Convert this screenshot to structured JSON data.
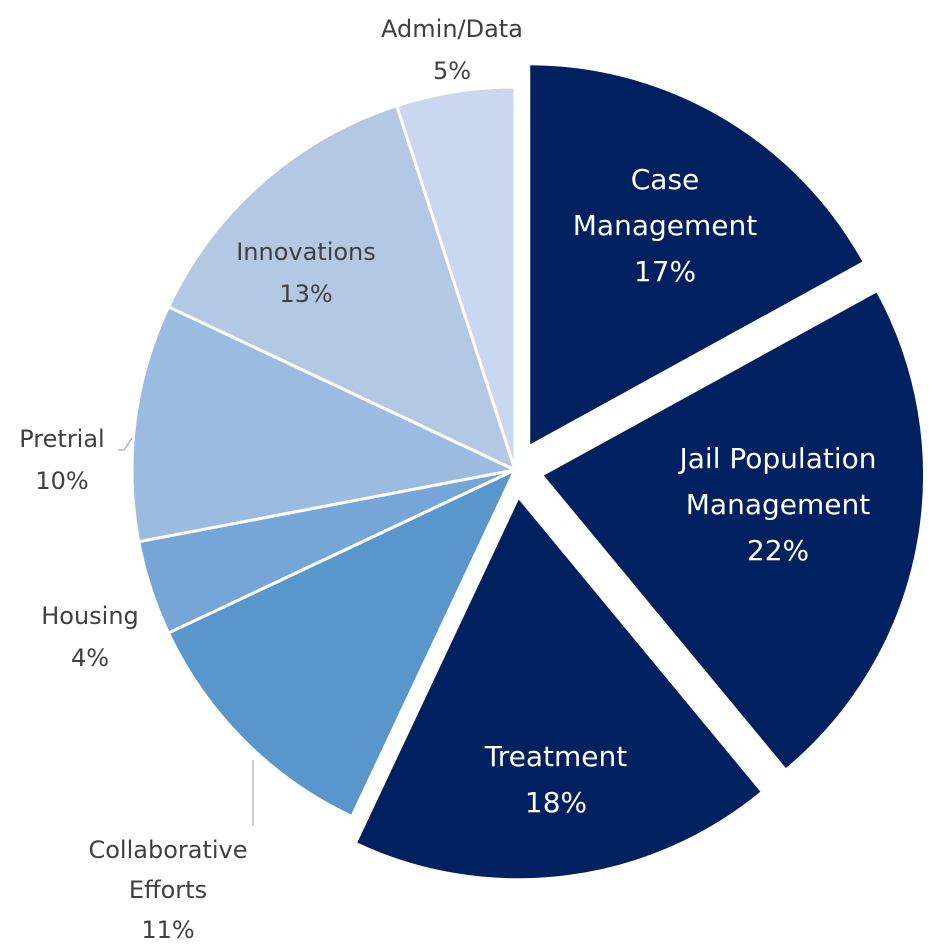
{
  "chart_data": {
    "type": "pie",
    "categories": [
      "Case Management",
      "Jail Population Management",
      "Treatment",
      "Collaborative Efforts",
      "Housing",
      "Pretrial",
      "Innovations",
      "Admin/Data"
    ],
    "values": [
      17,
      22,
      18,
      11,
      4,
      10,
      13,
      5
    ],
    "value_labels": [
      "17%",
      "22%",
      "18%",
      "11%",
      "4%",
      "10%",
      "13%",
      "5%"
    ],
    "colors": [
      "#002060",
      "#002060",
      "#002060",
      "#5896cc",
      "#76a5d8",
      "#9bbbe0",
      "#b4c8e4",
      "#c9d8ee"
    ],
    "exploded": [
      true,
      true,
      true,
      false,
      false,
      false,
      false,
      false
    ]
  }
}
